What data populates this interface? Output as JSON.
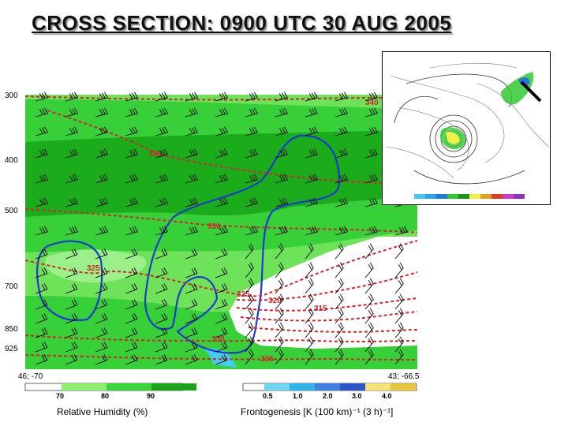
{
  "title": "CROSS SECTION:  0900 UTC 30 AUG 2005",
  "chart_data": {
    "type": "heatmap",
    "title": "CROSS SECTION:  0900 UTC 30 AUG 2005",
    "pressure_levels": [
      "300",
      "400",
      "500",
      "700",
      "850",
      "925"
    ],
    "endpoints": {
      "left": "46; -70",
      "right": "43; -66.5"
    },
    "theta_contours": [
      {
        "label": "340"
      },
      {
        "label": "335"
      },
      {
        "label": "330"
      },
      {
        "label": "325"
      },
      {
        "label": "325"
      },
      {
        "label": "320"
      },
      {
        "label": "315"
      },
      {
        "label": "330"
      },
      {
        "label": "335"
      }
    ],
    "relative_humidity_colorbar": {
      "label": "Relative Humidity (%)",
      "ticks": [
        "70",
        "80",
        "90"
      ],
      "colors": [
        "#8fef6f",
        "#3bd63b",
        "#19a419"
      ]
    },
    "frontogenesis_colorbar": {
      "label": "Frontogenesis [K (100 km)⁻¹ (3 h)⁻¹]",
      "ticks": [
        "0.5",
        "1.0",
        "2.0",
        "3.0",
        "4.0"
      ],
      "colors": [
        "#6fd6ef",
        "#2fb6e9",
        "#3f80e0",
        "#2c55c9",
        "#f4e27a",
        "#e8c63a"
      ]
    }
  },
  "inset": {
    "colorbar_colors": [
      "#48c8f0",
      "#2aa4e8",
      "#1f7ad8",
      "#32c832",
      "#1a961a",
      "#f0f048",
      "#e0a020",
      "#e03c2a",
      "#c83cc8",
      "#8c32b4"
    ]
  }
}
